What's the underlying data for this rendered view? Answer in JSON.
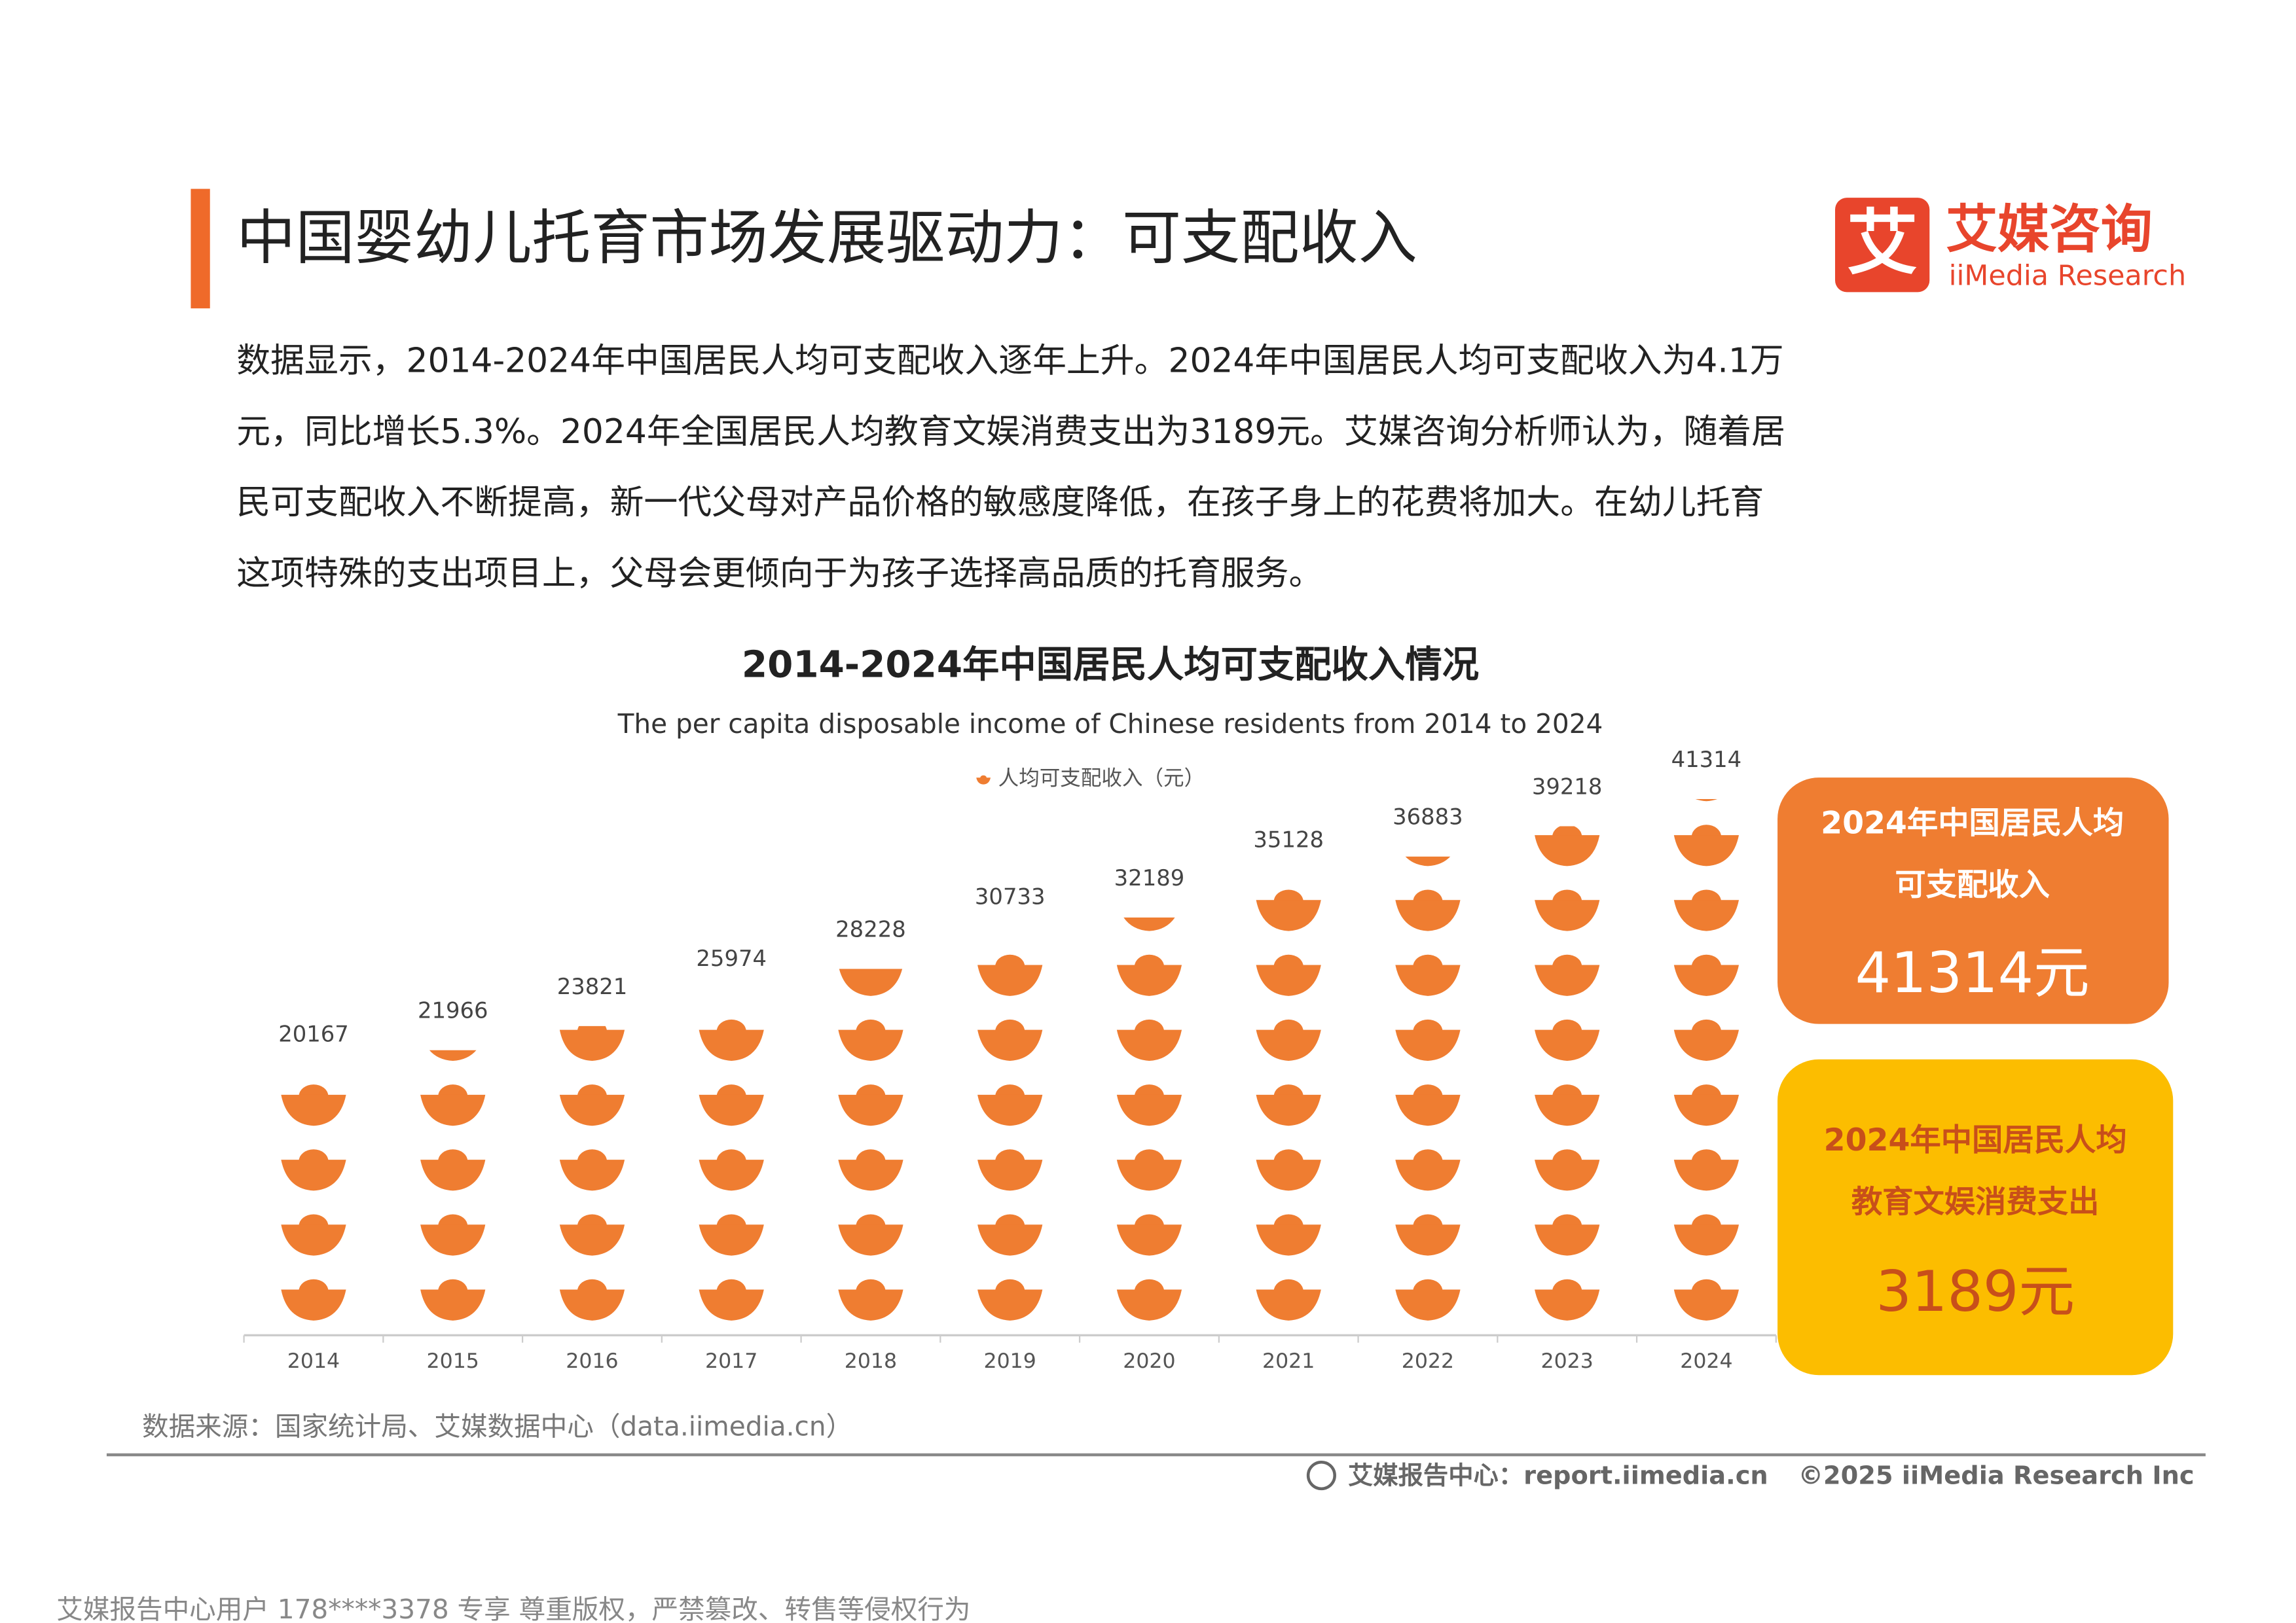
{
  "header": {
    "title": "中国婴幼儿托育市场发展驱动力：可支配收入",
    "logo_mark": "艾",
    "logo_text": "艾媒咨询",
    "logo_subtitle": "iiMedia Research"
  },
  "paragraph": [
    "数据显示，2014-2024年中国居民人均可支配收入逐年上升。2024年中国居民人均可支配收入为4.1万",
    "元，同比增长5.3%。2024年全国居民人均教育文娱消费支出为3189元。艾媒咨询分析师认为，随着居",
    "民可支配收入不断提高，新一代父母对产品价格的敏感度降低，在孩子身上的花费将加大。在幼儿托育",
    "这项特殊的支出项目上，父母会更倾向于为孩子选择高品质的托育服务。"
  ],
  "chart_data": {
    "type": "pictograph",
    "title": "2014-2024年中国居民人均可支配收入情况",
    "subtitle": "The per capita disposable income of Chinese residents from 2014 to 2024",
    "categories": [
      "2014",
      "2015",
      "2016",
      "2017",
      "2018",
      "2019",
      "2020",
      "2021",
      "2022",
      "2023",
      "2024"
    ],
    "series": [
      {
        "name": "人均可支配收入（元）",
        "color": "#ef7d31",
        "values": [
          20167,
          21966,
          23821,
          25974,
          28228,
          30733,
          32189,
          35128,
          36883,
          39218,
          41314
        ]
      }
    ]
  },
  "cards": [
    {
      "lines": [
        "2024年中国居民人均",
        "可支配收入"
      ],
      "value": "41314元"
    },
    {
      "lines": [
        "2024年中国居民人均",
        "教育文娱消费支出"
      ],
      "value": "3189元"
    }
  ],
  "source": "数据来源：国家统计局、艾媒数据中心（data.iimedia.cn）",
  "footer": {
    "report_center": "艾媒报告中心：report.iimedia.cn",
    "copyright": "©2025  iiMedia Research  Inc"
  },
  "watermark": "艾媒报告中心用户 178****3378 专享 尊重版权，严禁篡改、转售等侵权行为"
}
